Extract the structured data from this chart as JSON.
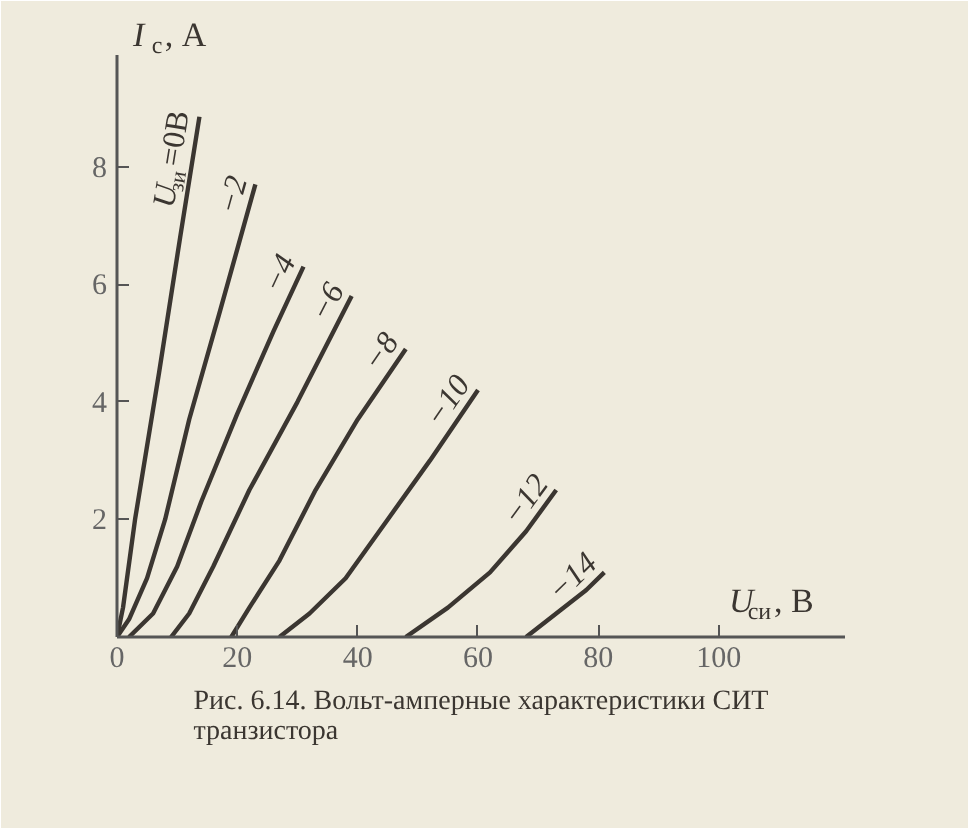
{
  "chart_data": {
    "type": "line",
    "xlabel": "U$_{си}$, В",
    "ylabel": "I$_{с}$, А",
    "annotations": [
      "Рис. 6.14. Вольт-амперные характеристики СИТ транзистора"
    ],
    "xlim": [
      0,
      121
    ],
    "ylim": [
      0,
      9.9
    ],
    "xticks": [
      0,
      20,
      40,
      60,
      80,
      100
    ],
    "yticks": [
      2,
      4,
      6,
      8
    ],
    "grid": false,
    "marker": "none",
    "line_style": "solid",
    "series": [
      {
        "name": "U$_{зи}$=0В",
        "color": "#3b3631",
        "x": [
          0,
          1,
          3,
          7,
          10.5,
          13.7
        ],
        "values": [
          0,
          0.5,
          2,
          4.5,
          6.8,
          8.85
        ]
      },
      {
        "name": "−2",
        "color": "#3b3631",
        "x": [
          0,
          2,
          5,
          8,
          12,
          17,
          23
        ],
        "values": [
          0,
          0.3,
          1,
          2,
          3.7,
          5.5,
          7.7
        ]
      },
      {
        "name": "−4",
        "color": "#3b3631",
        "x": [
          2,
          6,
          10,
          14,
          20,
          26,
          31
        ],
        "values": [
          0,
          0.4,
          1.2,
          2.3,
          3.8,
          5.2,
          6.3
        ]
      },
      {
        "name": "−6",
        "color": "#3b3631",
        "x": [
          9,
          12,
          16,
          22,
          30,
          39
        ],
        "values": [
          0,
          0.4,
          1.2,
          2.5,
          4,
          5.8
        ]
      },
      {
        "name": "−8",
        "color": "#3b3631",
        "x": [
          19,
          22,
          27,
          33,
          40,
          48
        ],
        "values": [
          0,
          0.5,
          1.3,
          2.5,
          3.7,
          4.9
        ]
      },
      {
        "name": "−10",
        "color": "#3b3631",
        "x": [
          27,
          32,
          38,
          45,
          52,
          60
        ],
        "values": [
          0,
          0.4,
          1,
          2,
          3,
          4.2
        ]
      },
      {
        "name": "−12",
        "color": "#3b3631",
        "x": [
          48,
          55,
          62,
          68,
          73
        ],
        "values": [
          0,
          0.5,
          1.1,
          1.8,
          2.5
        ]
      },
      {
        "name": "−14",
        "color": "#3b3631",
        "x": [
          68,
          73,
          78,
          81
        ],
        "values": [
          0,
          0.4,
          0.8,
          1.1
        ]
      }
    ]
  }
}
